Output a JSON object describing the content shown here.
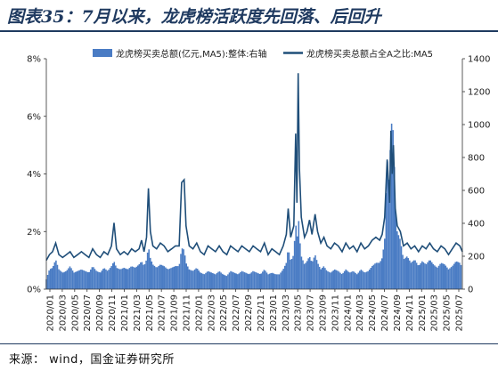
{
  "title": "图表35：7月以来，龙虎榜活跃度先回落、后回升",
  "source": "来源： wind，国金证券研究所",
  "colors": {
    "bar": "#4a7cc4",
    "line": "#1f4e79",
    "rule": "#1f3a60"
  },
  "chart_data": {
    "type": "bar+line",
    "title": "",
    "legend_position": "top",
    "series": [
      {
        "name": "龙虎榜买卖总额(亿元,MA5):整体:右轴",
        "kind": "bar",
        "axis": "right"
      },
      {
        "name": "龙虎榜买卖总额占全A之比:MA5",
        "kind": "line",
        "axis": "left"
      }
    ],
    "x_ticks": [
      "2020/01",
      "2020/03",
      "2020/05",
      "2020/07",
      "2020/09",
      "2020/11",
      "2021/01",
      "2021/03",
      "2021/05",
      "2021/07",
      "2021/09",
      "2021/11",
      "2022/01",
      "2022/03",
      "2022/05",
      "2022/07",
      "2022/09",
      "2022/11",
      "2023/01",
      "2023/03",
      "2023/05",
      "2023/07",
      "2023/09",
      "2023/11",
      "2024/01",
      "2024/03",
      "2024/05",
      "2024/07",
      "2024/09",
      "2024/11",
      "2025/01",
      "2025/03",
      "2025/05",
      "2025/07"
    ],
    "y_left": {
      "ticks": [
        "0%",
        "2%",
        "4%",
        "6%",
        "8%"
      ],
      "lim": [
        0,
        8
      ]
    },
    "y_right": {
      "ticks": [
        "0",
        "200",
        "400",
        "600",
        "800",
        "1000",
        "1200",
        "1400"
      ],
      "lim": [
        0,
        1400
      ]
    },
    "x_index_lim": [
      0,
      66.4
    ],
    "line_points": [
      [
        0,
        1.0
      ],
      [
        0.5,
        1.2
      ],
      [
        1.0,
        1.3
      ],
      [
        1.5,
        1.6
      ],
      [
        2.0,
        1.2
      ],
      [
        2.6,
        1.1
      ],
      [
        3.2,
        1.2
      ],
      [
        3.8,
        1.3
      ],
      [
        4.4,
        1.1
      ],
      [
        5.0,
        1.2
      ],
      [
        5.6,
        1.3
      ],
      [
        6.2,
        1.2
      ],
      [
        6.8,
        1.1
      ],
      [
        7.4,
        1.4
      ],
      [
        8.0,
        1.2
      ],
      [
        8.6,
        1.1
      ],
      [
        9.2,
        1.3
      ],
      [
        9.8,
        1.2
      ],
      [
        10.4,
        1.5
      ],
      [
        10.8,
        2.3
      ],
      [
        11.2,
        1.4
      ],
      [
        11.8,
        1.2
      ],
      [
        12.4,
        1.3
      ],
      [
        13.0,
        1.2
      ],
      [
        13.6,
        1.4
      ],
      [
        14.2,
        1.3
      ],
      [
        14.8,
        1.4
      ],
      [
        15.2,
        1.7
      ],
      [
        15.6,
        1.3
      ],
      [
        16.0,
        1.8
      ],
      [
        16.3,
        3.5
      ],
      [
        16.6,
        2.0
      ],
      [
        17.0,
        1.5
      ],
      [
        17.6,
        1.4
      ],
      [
        18.2,
        1.6
      ],
      [
        18.8,
        1.5
      ],
      [
        19.4,
        1.3
      ],
      [
        20.0,
        1.4
      ],
      [
        20.6,
        1.5
      ],
      [
        21.2,
        1.5
      ],
      [
        21.6,
        3.7
      ],
      [
        22.0,
        3.8
      ],
      [
        22.3,
        2.2
      ],
      [
        22.8,
        1.5
      ],
      [
        23.4,
        1.4
      ],
      [
        24.0,
        1.6
      ],
      [
        24.6,
        1.3
      ],
      [
        25.2,
        1.2
      ],
      [
        25.8,
        1.5
      ],
      [
        26.4,
        1.4
      ],
      [
        27.0,
        1.3
      ],
      [
        27.6,
        1.5
      ],
      [
        28.2,
        1.3
      ],
      [
        28.8,
        1.2
      ],
      [
        29.4,
        1.5
      ],
      [
        30.0,
        1.4
      ],
      [
        30.6,
        1.3
      ],
      [
        31.2,
        1.5
      ],
      [
        31.8,
        1.4
      ],
      [
        32.4,
        1.3
      ],
      [
        33.0,
        1.5
      ],
      [
        33.6,
        1.4
      ],
      [
        34.2,
        1.3
      ],
      [
        34.8,
        1.6
      ],
      [
        35.4,
        1.2
      ],
      [
        36.0,
        1.4
      ],
      [
        36.6,
        1.3
      ],
      [
        37.2,
        1.2
      ],
      [
        37.8,
        1.5
      ],
      [
        38.3,
        1.9
      ],
      [
        38.6,
        2.8
      ],
      [
        39.0,
        1.8
      ],
      [
        39.5,
        2.2
      ],
      [
        39.8,
        5.4
      ],
      [
        40.0,
        3.0
      ],
      [
        40.2,
        7.5
      ],
      [
        40.4,
        4.2
      ],
      [
        40.7,
        2.5
      ],
      [
        41.2,
        1.8
      ],
      [
        41.6,
        2.0
      ],
      [
        42.0,
        2.4
      ],
      [
        42.4,
        1.9
      ],
      [
        42.9,
        2.6
      ],
      [
        43.3,
        2.0
      ],
      [
        43.8,
        1.6
      ],
      [
        44.3,
        1.8
      ],
      [
        44.8,
        1.5
      ],
      [
        45.4,
        1.4
      ],
      [
        46.0,
        1.6
      ],
      [
        46.6,
        1.5
      ],
      [
        47.2,
        1.3
      ],
      [
        47.8,
        1.6
      ],
      [
        48.4,
        1.4
      ],
      [
        49.0,
        1.5
      ],
      [
        49.6,
        1.3
      ],
      [
        50.2,
        1.6
      ],
      [
        50.8,
        1.4
      ],
      [
        51.4,
        1.5
      ],
      [
        52.0,
        1.7
      ],
      [
        52.6,
        1.8
      ],
      [
        53.2,
        1.7
      ],
      [
        53.6,
        1.9
      ],
      [
        54.0,
        2.5
      ],
      [
        54.4,
        4.5
      ],
      [
        54.8,
        3.0
      ],
      [
        55.0,
        5.5
      ],
      [
        55.2,
        4.0
      ],
      [
        55.4,
        5.0
      ],
      [
        55.7,
        2.8
      ],
      [
        56.0,
        2.2
      ],
      [
        56.5,
        2.0
      ],
      [
        57.0,
        1.5
      ],
      [
        57.6,
        1.6
      ],
      [
        58.2,
        1.4
      ],
      [
        58.8,
        1.5
      ],
      [
        59.4,
        1.3
      ],
      [
        60.0,
        1.5
      ],
      [
        60.6,
        1.4
      ],
      [
        61.2,
        1.6
      ],
      [
        61.8,
        1.4
      ],
      [
        62.4,
        1.3
      ],
      [
        63.0,
        1.5
      ],
      [
        63.6,
        1.4
      ],
      [
        64.2,
        1.2
      ],
      [
        64.8,
        1.4
      ],
      [
        65.4,
        1.6
      ],
      [
        66.0,
        1.5
      ],
      [
        66.4,
        1.3
      ]
    ],
    "bar_points": [
      [
        0,
        60
      ],
      [
        0.5,
        120
      ],
      [
        1.0,
        130
      ],
      [
        1.5,
        180
      ],
      [
        2.0,
        120
      ],
      [
        2.6,
        100
      ],
      [
        3.2,
        110
      ],
      [
        3.8,
        140
      ],
      [
        4.4,
        100
      ],
      [
        5.0,
        110
      ],
      [
        5.6,
        120
      ],
      [
        6.2,
        110
      ],
      [
        6.8,
        100
      ],
      [
        7.4,
        140
      ],
      [
        8.0,
        110
      ],
      [
        8.6,
        100
      ],
      [
        9.2,
        130
      ],
      [
        9.8,
        110
      ],
      [
        10.4,
        140
      ],
      [
        10.8,
        170
      ],
      [
        11.2,
        130
      ],
      [
        11.8,
        120
      ],
      [
        12.4,
        130
      ],
      [
        13.0,
        120
      ],
      [
        13.6,
        140
      ],
      [
        14.2,
        130
      ],
      [
        14.8,
        150
      ],
      [
        15.2,
        170
      ],
      [
        15.6,
        140
      ],
      [
        16.0,
        180
      ],
      [
        16.3,
        260
      ],
      [
        16.6,
        190
      ],
      [
        17.0,
        150
      ],
      [
        17.6,
        130
      ],
      [
        18.2,
        150
      ],
      [
        18.8,
        140
      ],
      [
        19.4,
        120
      ],
      [
        20.0,
        130
      ],
      [
        20.6,
        140
      ],
      [
        21.2,
        140
      ],
      [
        21.6,
        250
      ],
      [
        22.0,
        240
      ],
      [
        22.3,
        160
      ],
      [
        22.8,
        120
      ],
      [
        23.4,
        110
      ],
      [
        24.0,
        130
      ],
      [
        24.6,
        100
      ],
      [
        25.2,
        90
      ],
      [
        25.8,
        110
      ],
      [
        26.4,
        100
      ],
      [
        27.0,
        90
      ],
      [
        27.6,
        110
      ],
      [
        28.2,
        90
      ],
      [
        28.8,
        80
      ],
      [
        29.4,
        110
      ],
      [
        30.0,
        100
      ],
      [
        30.6,
        90
      ],
      [
        31.2,
        110
      ],
      [
        31.8,
        100
      ],
      [
        32.4,
        90
      ],
      [
        33.0,
        110
      ],
      [
        33.6,
        100
      ],
      [
        34.2,
        90
      ],
      [
        34.8,
        120
      ],
      [
        35.4,
        90
      ],
      [
        36.0,
        100
      ],
      [
        36.6,
        90
      ],
      [
        37.2,
        90
      ],
      [
        37.8,
        120
      ],
      [
        38.3,
        160
      ],
      [
        38.6,
        250
      ],
      [
        39.0,
        170
      ],
      [
        39.5,
        210
      ],
      [
        39.8,
        420
      ],
      [
        40.0,
        250
      ],
      [
        40.2,
        480
      ],
      [
        40.4,
        320
      ],
      [
        40.7,
        200
      ],
      [
        41.2,
        150
      ],
      [
        41.6,
        170
      ],
      [
        42.0,
        200
      ],
      [
        42.4,
        160
      ],
      [
        42.9,
        210
      ],
      [
        43.3,
        160
      ],
      [
        43.8,
        120
      ],
      [
        44.3,
        140
      ],
      [
        44.8,
        110
      ],
      [
        45.4,
        100
      ],
      [
        46.0,
        120
      ],
      [
        46.6,
        110
      ],
      [
        47.2,
        90
      ],
      [
        47.8,
        120
      ],
      [
        48.4,
        100
      ],
      [
        49.0,
        110
      ],
      [
        49.6,
        90
      ],
      [
        50.2,
        120
      ],
      [
        50.8,
        100
      ],
      [
        51.4,
        110
      ],
      [
        52.0,
        140
      ],
      [
        52.6,
        160
      ],
      [
        53.2,
        160
      ],
      [
        53.6,
        190
      ],
      [
        54.0,
        300
      ],
      [
        54.4,
        800
      ],
      [
        54.8,
        600
      ],
      [
        55.0,
        1140
      ],
      [
        55.2,
        900
      ],
      [
        55.4,
        1000
      ],
      [
        55.7,
        500
      ],
      [
        56.0,
        350
      ],
      [
        56.5,
        300
      ],
      [
        57.0,
        180
      ],
      [
        57.6,
        200
      ],
      [
        58.2,
        160
      ],
      [
        58.8,
        180
      ],
      [
        59.4,
        140
      ],
      [
        60.0,
        170
      ],
      [
        60.6,
        150
      ],
      [
        61.2,
        180
      ],
      [
        61.8,
        150
      ],
      [
        62.4,
        130
      ],
      [
        63.0,
        160
      ],
      [
        63.6,
        150
      ],
      [
        64.2,
        120
      ],
      [
        64.8,
        140
      ],
      [
        65.4,
        170
      ],
      [
        66.0,
        160
      ],
      [
        66.4,
        130
      ]
    ]
  }
}
